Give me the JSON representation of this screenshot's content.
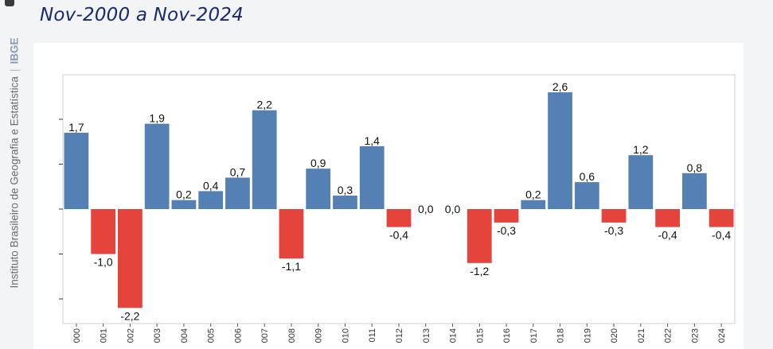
{
  "header": {
    "subtitle": "Nov-2000 a Nov-2024"
  },
  "sidebar": {
    "org_name": "Instituto Brasileiro de Geografia e Estatística",
    "org_abbr": "IBGE"
  },
  "chart_data": {
    "type": "bar",
    "title": "",
    "xlabel": "",
    "ylabel": "",
    "ylim": [
      -2.6,
      3.0
    ],
    "grid": false,
    "tick_labels": [
      "000",
      "001",
      "002",
      "003",
      "004",
      "005",
      "006",
      "007",
      "008",
      "009",
      "010",
      "011",
      "012",
      "013",
      "014",
      "015",
      "016",
      "017",
      "018",
      "019",
      "020",
      "021",
      "022",
      "023",
      "024"
    ],
    "values": [
      1.7,
      -1.0,
      -2.2,
      1.9,
      0.2,
      0.4,
      0.7,
      2.2,
      -1.1,
      0.9,
      0.3,
      1.4,
      -0.4,
      0.0,
      0.0,
      -1.2,
      -0.3,
      0.2,
      2.6,
      0.6,
      -0.3,
      1.2,
      -0.4,
      0.8,
      -0.4
    ],
    "value_labels": [
      "1,7",
      "-1,0",
      "-2,2",
      "1,9",
      "0,2",
      "0,4",
      "0,7",
      "2,2",
      "-1,1",
      "0,9",
      "0,3",
      "1,4",
      "-0,4",
      "0,0",
      "0,0",
      "-1,2",
      "-0,3",
      "0,2",
      "2,6",
      "0,6",
      "-0,3",
      "1,2",
      "-0,4",
      "0,8",
      "-0,4"
    ],
    "colors": {
      "positive": "#5580b3",
      "negative": "#e5443c"
    }
  }
}
